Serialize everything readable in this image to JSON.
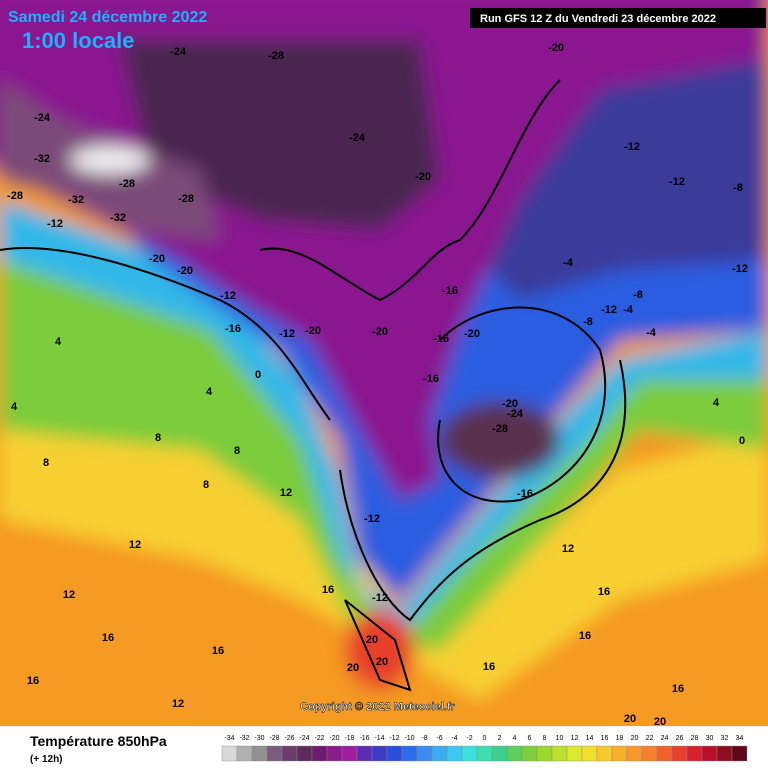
{
  "header": {
    "date": "Samedi 24 décembre 2022",
    "time": "1:00 locale",
    "run": "Run GFS 12 Z du Vendredi 23 décembre 2022"
  },
  "copyright": "Copyright © 2022 Meteociel.fr",
  "legend": {
    "title": "Température 850hPa",
    "step": "(+ 12h)"
  },
  "colorbar": {
    "values": [
      -34,
      -32,
      -30,
      -28,
      -26,
      -24,
      -22,
      -20,
      -18,
      -16,
      -14,
      -12,
      -10,
      -8,
      -6,
      -4,
      -2,
      0,
      2,
      4,
      6,
      8,
      10,
      12,
      14,
      16,
      18,
      20,
      22,
      24,
      26,
      28,
      30,
      32,
      34
    ],
    "colors": [
      "#d8d8d8",
      "#b0b0b0",
      "#909090",
      "#7c5c7c",
      "#6c3c6c",
      "#5c2c5c",
      "#6c1c6c",
      "#8c1c8c",
      "#a01ca0",
      "#5c2cb4",
      "#3c3cc8",
      "#2c4cdc",
      "#2c6ce8",
      "#3c8cf0",
      "#3cacf0",
      "#3cc8f0",
      "#3ce0e0",
      "#3ce0b0",
      "#3cd08c",
      "#5cd05c",
      "#7cd03c",
      "#9cd82c",
      "#bce02c",
      "#dce82c",
      "#f0e02c",
      "#f8c82c",
      "#f8b02c",
      "#f8982c",
      "#f8802c",
      "#f0602c",
      "#e8402c",
      "#d8202c",
      "#b8102c",
      "#900c20",
      "#600818"
    ]
  },
  "contour_labels": [
    -24,
    -24,
    -28,
    -24,
    -20,
    -20,
    -32,
    -28,
    -28,
    -32,
    -32,
    -28,
    -12,
    -20,
    -20,
    -12,
    -16,
    -12,
    -20,
    -20,
    -16,
    -16,
    -20,
    -16,
    -20,
    -24,
    -28,
    -16,
    -12,
    -12,
    -12,
    -12,
    -8,
    -12,
    -4,
    -8,
    -12,
    -4,
    -8,
    -4,
    4,
    8,
    8,
    8,
    12,
    12,
    12,
    12,
    16,
    16,
    16,
    16,
    16,
    20,
    20,
    20,
    16,
    16,
    20,
    20,
    16,
    12,
    4,
    4,
    4,
    0,
    8,
    0
  ]
}
